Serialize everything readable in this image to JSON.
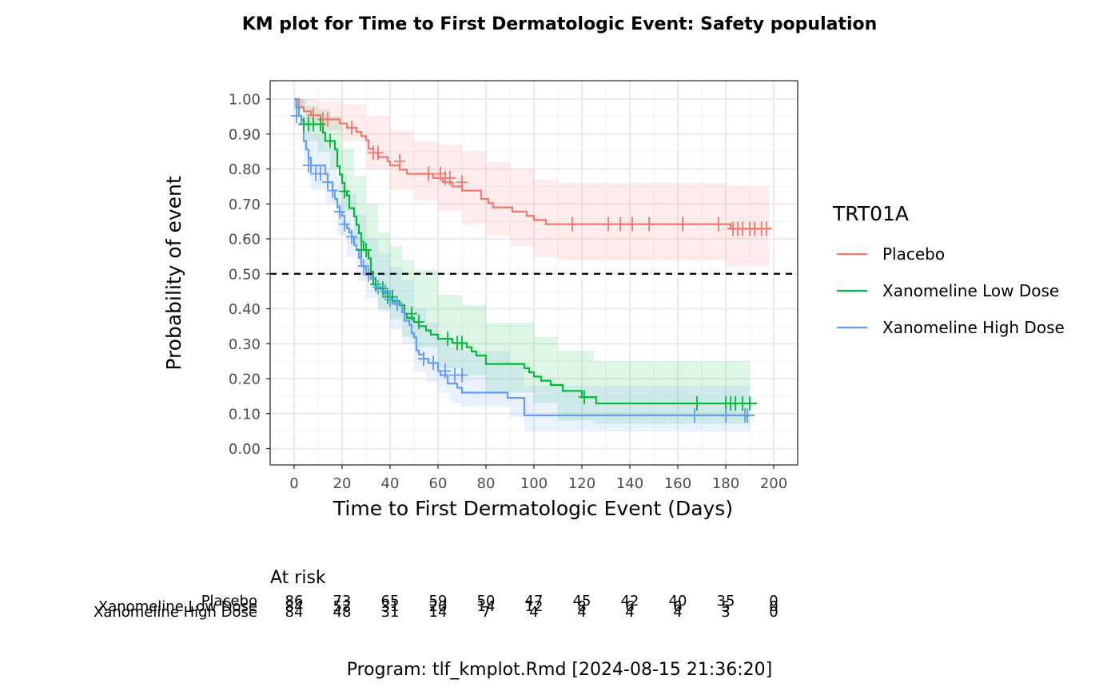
{
  "title": "KM plot for Time to First Dermatologic Event: Safety population",
  "footnote": "Program: tlf_kmplot.Rmd [2024-08-15 21:36:20]",
  "risk_table": {
    "title": "At risk",
    "times": [
      0,
      20,
      40,
      60,
      80,
      100,
      120,
      140,
      160,
      180,
      200
    ],
    "rows": [
      {
        "name": "Placebo",
        "values": [
          86,
          73,
          65,
          59,
          50,
          47,
          45,
          42,
          40,
          35,
          0
        ]
      },
      {
        "name": "Xanomeline Low Dose",
        "values": [
          84,
          52,
          31,
          20,
          14,
          12,
          8,
          6,
          6,
          5,
          0
        ]
      },
      {
        "name": "Xanomeline High Dose",
        "values": [
          84,
          48,
          31,
          14,
          7,
          4,
          4,
          4,
          4,
          3,
          0
        ]
      }
    ]
  },
  "chart_data": {
    "type": "line",
    "title": "KM plot for Time to First Dermatologic Event: Safety population",
    "xlabel": "Time to First Dermatologic Event (Days)",
    "ylabel": "Probability of event",
    "xlim": [
      -10,
      210
    ],
    "ylim": [
      -0.05,
      1.05
    ],
    "x_ticks": [
      0,
      20,
      40,
      60,
      80,
      100,
      120,
      140,
      160,
      180,
      200
    ],
    "y_ticks": [
      0.0,
      0.1,
      0.2,
      0.3,
      0.4,
      0.5,
      0.6,
      0.7,
      0.8,
      0.9,
      1.0
    ],
    "y_tick_labels": [
      "0.00",
      "0.10",
      "0.20",
      "0.30",
      "0.40",
      "0.50",
      "0.60",
      "0.70",
      "0.80",
      "0.90",
      "1.00"
    ],
    "x_tick_labels": [
      "0",
      "20",
      "40",
      "60",
      "80",
      "100",
      "120",
      "140",
      "160",
      "180",
      "200"
    ],
    "reference_line": {
      "y": 0.5,
      "style": "dashed",
      "color": "#000000"
    },
    "grid": true,
    "legend": {
      "title": "TRT01A",
      "position": "right"
    },
    "series": [
      {
        "name": "Placebo",
        "color": "#F8766D",
        "steps": [
          [
            0,
            1.0
          ],
          [
            2,
            0.977
          ],
          [
            4,
            0.965
          ],
          [
            7,
            0.954
          ],
          [
            11,
            0.942
          ],
          [
            19,
            0.93
          ],
          [
            22,
            0.918
          ],
          [
            26,
            0.906
          ],
          [
            28,
            0.894
          ],
          [
            30,
            0.882
          ],
          [
            31,
            0.858
          ],
          [
            33,
            0.846
          ],
          [
            35,
            0.834
          ],
          [
            39,
            0.822
          ],
          [
            40,
            0.81
          ],
          [
            44,
            0.798
          ],
          [
            47,
            0.786
          ],
          [
            58,
            0.774
          ],
          [
            62,
            0.762
          ],
          [
            66,
            0.75
          ],
          [
            70,
            0.738
          ],
          [
            78,
            0.714
          ],
          [
            81,
            0.702
          ],
          [
            83,
            0.69
          ],
          [
            91,
            0.678
          ],
          [
            97,
            0.666
          ],
          [
            100,
            0.654
          ],
          [
            105,
            0.642
          ],
          [
            182,
            0.629
          ],
          [
            199,
            0.629
          ]
        ],
        "censor": [
          [
            8,
            0.954
          ],
          [
            12,
            0.942
          ],
          [
            14,
            0.942
          ],
          [
            24,
            0.918
          ],
          [
            33,
            0.846
          ],
          [
            35,
            0.846
          ],
          [
            44,
            0.822
          ],
          [
            56,
            0.786
          ],
          [
            61,
            0.786
          ],
          [
            63,
            0.774
          ],
          [
            65,
            0.774
          ],
          [
            70,
            0.762
          ],
          [
            116,
            0.642
          ],
          [
            131,
            0.642
          ],
          [
            136,
            0.642
          ],
          [
            141,
            0.642
          ],
          [
            148,
            0.642
          ],
          [
            162,
            0.642
          ],
          [
            177,
            0.642
          ],
          [
            183,
            0.629
          ],
          [
            185,
            0.629
          ],
          [
            187,
            0.629
          ],
          [
            190,
            0.629
          ],
          [
            192,
            0.629
          ],
          [
            195,
            0.629
          ],
          [
            197,
            0.629
          ]
        ],
        "ci_steps": [
          [
            0,
            0.98,
            1.0
          ],
          [
            5,
            0.93,
            1.0
          ],
          [
            10,
            0.91,
            0.995
          ],
          [
            20,
            0.88,
            0.985
          ],
          [
            30,
            0.8,
            0.95
          ],
          [
            40,
            0.74,
            0.91
          ],
          [
            50,
            0.71,
            0.88
          ],
          [
            60,
            0.68,
            0.87
          ],
          [
            70,
            0.64,
            0.85
          ],
          [
            80,
            0.61,
            0.82
          ],
          [
            90,
            0.58,
            0.8
          ],
          [
            100,
            0.55,
            0.77
          ],
          [
            110,
            0.54,
            0.76
          ],
          [
            180,
            0.52,
            0.75
          ],
          [
            198,
            0.52,
            0.75
          ]
        ]
      },
      {
        "name": "Xanomeline Low Dose",
        "color": "#00BA38",
        "steps": [
          [
            0,
            1.0
          ],
          [
            1,
            0.976
          ],
          [
            2,
            0.952
          ],
          [
            3,
            0.94
          ],
          [
            4,
            0.928
          ],
          [
            12,
            0.904
          ],
          [
            13,
            0.88
          ],
          [
            17,
            0.856
          ],
          [
            18,
            0.808
          ],
          [
            19,
            0.784
          ],
          [
            20,
            0.76
          ],
          [
            21,
            0.736
          ],
          [
            22,
            0.724
          ],
          [
            23,
            0.688
          ],
          [
            25,
            0.664
          ],
          [
            26,
            0.64
          ],
          [
            27,
            0.616
          ],
          [
            28,
            0.592
          ],
          [
            29,
            0.568
          ],
          [
            31,
            0.544
          ],
          [
            32,
            0.506
          ],
          [
            33,
            0.47
          ],
          [
            34,
            0.458
          ],
          [
            37,
            0.446
          ],
          [
            39,
            0.434
          ],
          [
            41,
            0.422
          ],
          [
            44,
            0.41
          ],
          [
            46,
            0.386
          ],
          [
            47,
            0.374
          ],
          [
            50,
            0.362
          ],
          [
            52,
            0.35
          ],
          [
            55,
            0.338
          ],
          [
            57,
            0.326
          ],
          [
            60,
            0.314
          ],
          [
            66,
            0.302
          ],
          [
            72,
            0.29
          ],
          [
            74,
            0.278
          ],
          [
            76,
            0.266
          ],
          [
            80,
            0.242
          ],
          [
            96,
            0.23
          ],
          [
            98,
            0.218
          ],
          [
            100,
            0.206
          ],
          [
            103,
            0.194
          ],
          [
            107,
            0.182
          ],
          [
            112,
            0.165
          ],
          [
            120,
            0.147
          ],
          [
            126,
            0.129
          ],
          [
            190,
            0.129
          ],
          [
            193,
            0.129
          ]
        ],
        "censor": [
          [
            4,
            0.928
          ],
          [
            6,
            0.928
          ],
          [
            8,
            0.928
          ],
          [
            11,
            0.928
          ],
          [
            15,
            0.88
          ],
          [
            21,
            0.736
          ],
          [
            28,
            0.568
          ],
          [
            30,
            0.568
          ],
          [
            34,
            0.47
          ],
          [
            37,
            0.458
          ],
          [
            39,
            0.434
          ],
          [
            41,
            0.434
          ],
          [
            49,
            0.386
          ],
          [
            52,
            0.362
          ],
          [
            64,
            0.314
          ],
          [
            68,
            0.302
          ],
          [
            70,
            0.302
          ],
          [
            121,
            0.147
          ],
          [
            168,
            0.129
          ],
          [
            180,
            0.129
          ],
          [
            182,
            0.129
          ],
          [
            184,
            0.129
          ],
          [
            187,
            0.129
          ],
          [
            190,
            0.129
          ]
        ],
        "ci_steps": [
          [
            0,
            0.97,
            1.0
          ],
          [
            5,
            0.88,
            0.98
          ],
          [
            10,
            0.85,
            0.97
          ],
          [
            15,
            0.8,
            0.95
          ],
          [
            20,
            0.68,
            0.86
          ],
          [
            25,
            0.58,
            0.78
          ],
          [
            30,
            0.49,
            0.7
          ],
          [
            35,
            0.4,
            0.62
          ],
          [
            40,
            0.37,
            0.58
          ],
          [
            45,
            0.32,
            0.54
          ],
          [
            50,
            0.29,
            0.51
          ],
          [
            60,
            0.23,
            0.44
          ],
          [
            70,
            0.21,
            0.41
          ],
          [
            80,
            0.16,
            0.36
          ],
          [
            100,
            0.13,
            0.32
          ],
          [
            110,
            0.08,
            0.28
          ],
          [
            125,
            0.07,
            0.25
          ],
          [
            190,
            0.07,
            0.25
          ]
        ]
      },
      {
        "name": "Xanomeline High Dose",
        "color": "#619CFF",
        "steps": [
          [
            0,
            1.0
          ],
          [
            1,
            0.976
          ],
          [
            2,
            0.952
          ],
          [
            3,
            0.928
          ],
          [
            4,
            0.88
          ],
          [
            5,
            0.856
          ],
          [
            6,
            0.832
          ],
          [
            7,
            0.81
          ],
          [
            13,
            0.786
          ],
          [
            14,
            0.762
          ],
          [
            16,
            0.738
          ],
          [
            17,
            0.714
          ],
          [
            18,
            0.69
          ],
          [
            19,
            0.678
          ],
          [
            20,
            0.666
          ],
          [
            21,
            0.642
          ],
          [
            22,
            0.63
          ],
          [
            23,
            0.618
          ],
          [
            24,
            0.606
          ],
          [
            25,
            0.582
          ],
          [
            26,
            0.57
          ],
          [
            27,
            0.546
          ],
          [
            28,
            0.522
          ],
          [
            30,
            0.498
          ],
          [
            32,
            0.486
          ],
          [
            34,
            0.462
          ],
          [
            37,
            0.45
          ],
          [
            40,
            0.426
          ],
          [
            42,
            0.414
          ],
          [
            45,
            0.39
          ],
          [
            46,
            0.366
          ],
          [
            48,
            0.354
          ],
          [
            49,
            0.33
          ],
          [
            50,
            0.318
          ],
          [
            51,
            0.281
          ],
          [
            52,
            0.269
          ],
          [
            54,
            0.257
          ],
          [
            56,
            0.245
          ],
          [
            60,
            0.222
          ],
          [
            61,
            0.21
          ],
          [
            64,
            0.186
          ],
          [
            68,
            0.174
          ],
          [
            70,
            0.16
          ],
          [
            89,
            0.145
          ],
          [
            96,
            0.095
          ],
          [
            192,
            0.095
          ]
        ],
        "censor": [
          [
            1,
            0.952
          ],
          [
            6,
            0.81
          ],
          [
            7,
            0.81
          ],
          [
            9,
            0.786
          ],
          [
            11,
            0.786
          ],
          [
            14,
            0.762
          ],
          [
            16,
            0.738
          ],
          [
            19,
            0.678
          ],
          [
            21,
            0.642
          ],
          [
            24,
            0.606
          ],
          [
            29,
            0.522
          ],
          [
            31,
            0.498
          ],
          [
            35,
            0.462
          ],
          [
            38,
            0.45
          ],
          [
            40,
            0.426
          ],
          [
            43,
            0.414
          ],
          [
            54,
            0.257
          ],
          [
            58,
            0.245
          ],
          [
            63,
            0.222
          ],
          [
            67,
            0.21
          ],
          [
            70,
            0.21
          ],
          [
            167,
            0.095
          ],
          [
            180,
            0.095
          ],
          [
            188,
            0.095
          ],
          [
            189,
            0.095
          ]
        ],
        "ci_steps": [
          [
            0,
            0.97,
            1.0
          ],
          [
            4,
            0.82,
            0.96
          ],
          [
            7,
            0.74,
            0.9
          ],
          [
            13,
            0.7,
            0.86
          ],
          [
            18,
            0.61,
            0.78
          ],
          [
            22,
            0.55,
            0.73
          ],
          [
            26,
            0.48,
            0.67
          ],
          [
            30,
            0.43,
            0.6
          ],
          [
            35,
            0.39,
            0.56
          ],
          [
            40,
            0.34,
            0.52
          ],
          [
            45,
            0.3,
            0.48
          ],
          [
            50,
            0.22,
            0.4
          ],
          [
            55,
            0.19,
            0.36
          ],
          [
            60,
            0.16,
            0.32
          ],
          [
            65,
            0.13,
            0.29
          ],
          [
            70,
            0.12,
            0.28
          ],
          [
            90,
            0.09,
            0.24
          ],
          [
            96,
            0.05,
            0.18
          ],
          [
            190,
            0.05,
            0.18
          ]
        ]
      }
    ]
  }
}
